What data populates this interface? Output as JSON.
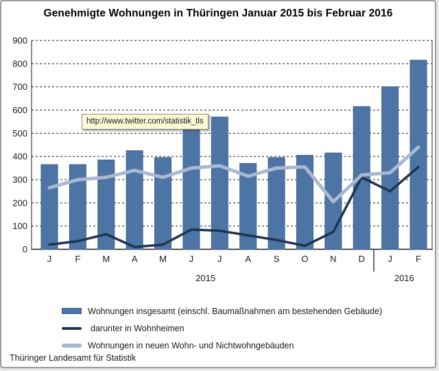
{
  "title": "Genehmigte Wohnungen in Thüringen Januar 2015 bis Februar 2016",
  "tooltip": {
    "text": "http://www.twitter.com/statistik_tls"
  },
  "footer": "Thüringer Landesamt für Statistik",
  "colors": {
    "bar_fill": "#4C74A4",
    "bar_border": "#3C608F",
    "line_dark": "#1E3450",
    "line_light": "#A9B8D3",
    "grid": "#1a1a1a",
    "tooltip_bg": "#FBFAD3",
    "frame_border": "#9B9B9B"
  },
  "chart_data": {
    "type": "bar",
    "title": "Genehmigte Wohnungen in Thüringen Januar 2015 bis Februar 2016",
    "categories": [
      "J",
      "F",
      "M",
      "A",
      "M",
      "J",
      "J",
      "A",
      "S",
      "O",
      "N",
      "D",
      "J",
      "F"
    ],
    "year_labels": [
      {
        "label": "2015",
        "from": 0,
        "to": 11
      },
      {
        "label": "2016",
        "from": 12,
        "to": 13
      }
    ],
    "xlabel": "",
    "ylabel": "",
    "ylim": [
      0,
      900
    ],
    "ytick_step": 100,
    "grid": "dashed-horizontal",
    "legend_position": "bottom-left",
    "grid_color": "#1a1a1a",
    "series": [
      {
        "name": "Wohnungen insgesamt (einschl. Baumaßnahmen am bestehenden Gebäude)",
        "type": "bar",
        "color": "#4C74A4",
        "border": "#3C608F",
        "values": [
          365,
          365,
          385,
          425,
          395,
          520,
          570,
          370,
          395,
          405,
          415,
          615,
          700,
          815
        ]
      },
      {
        "name": "darunter in Wohnheimen",
        "type": "line",
        "color": "#1E3450",
        "values": [
          20,
          35,
          65,
          10,
          20,
          85,
          80,
          60,
          40,
          15,
          75,
          310,
          250,
          355
        ]
      },
      {
        "name": "Wohnungen in neuen Wohn- und Nichtwohngebäuden",
        "type": "line",
        "color": "#A9B8D3",
        "values": [
          265,
          300,
          310,
          340,
          310,
          350,
          360,
          315,
          350,
          355,
          205,
          320,
          330,
          440
        ]
      }
    ]
  }
}
